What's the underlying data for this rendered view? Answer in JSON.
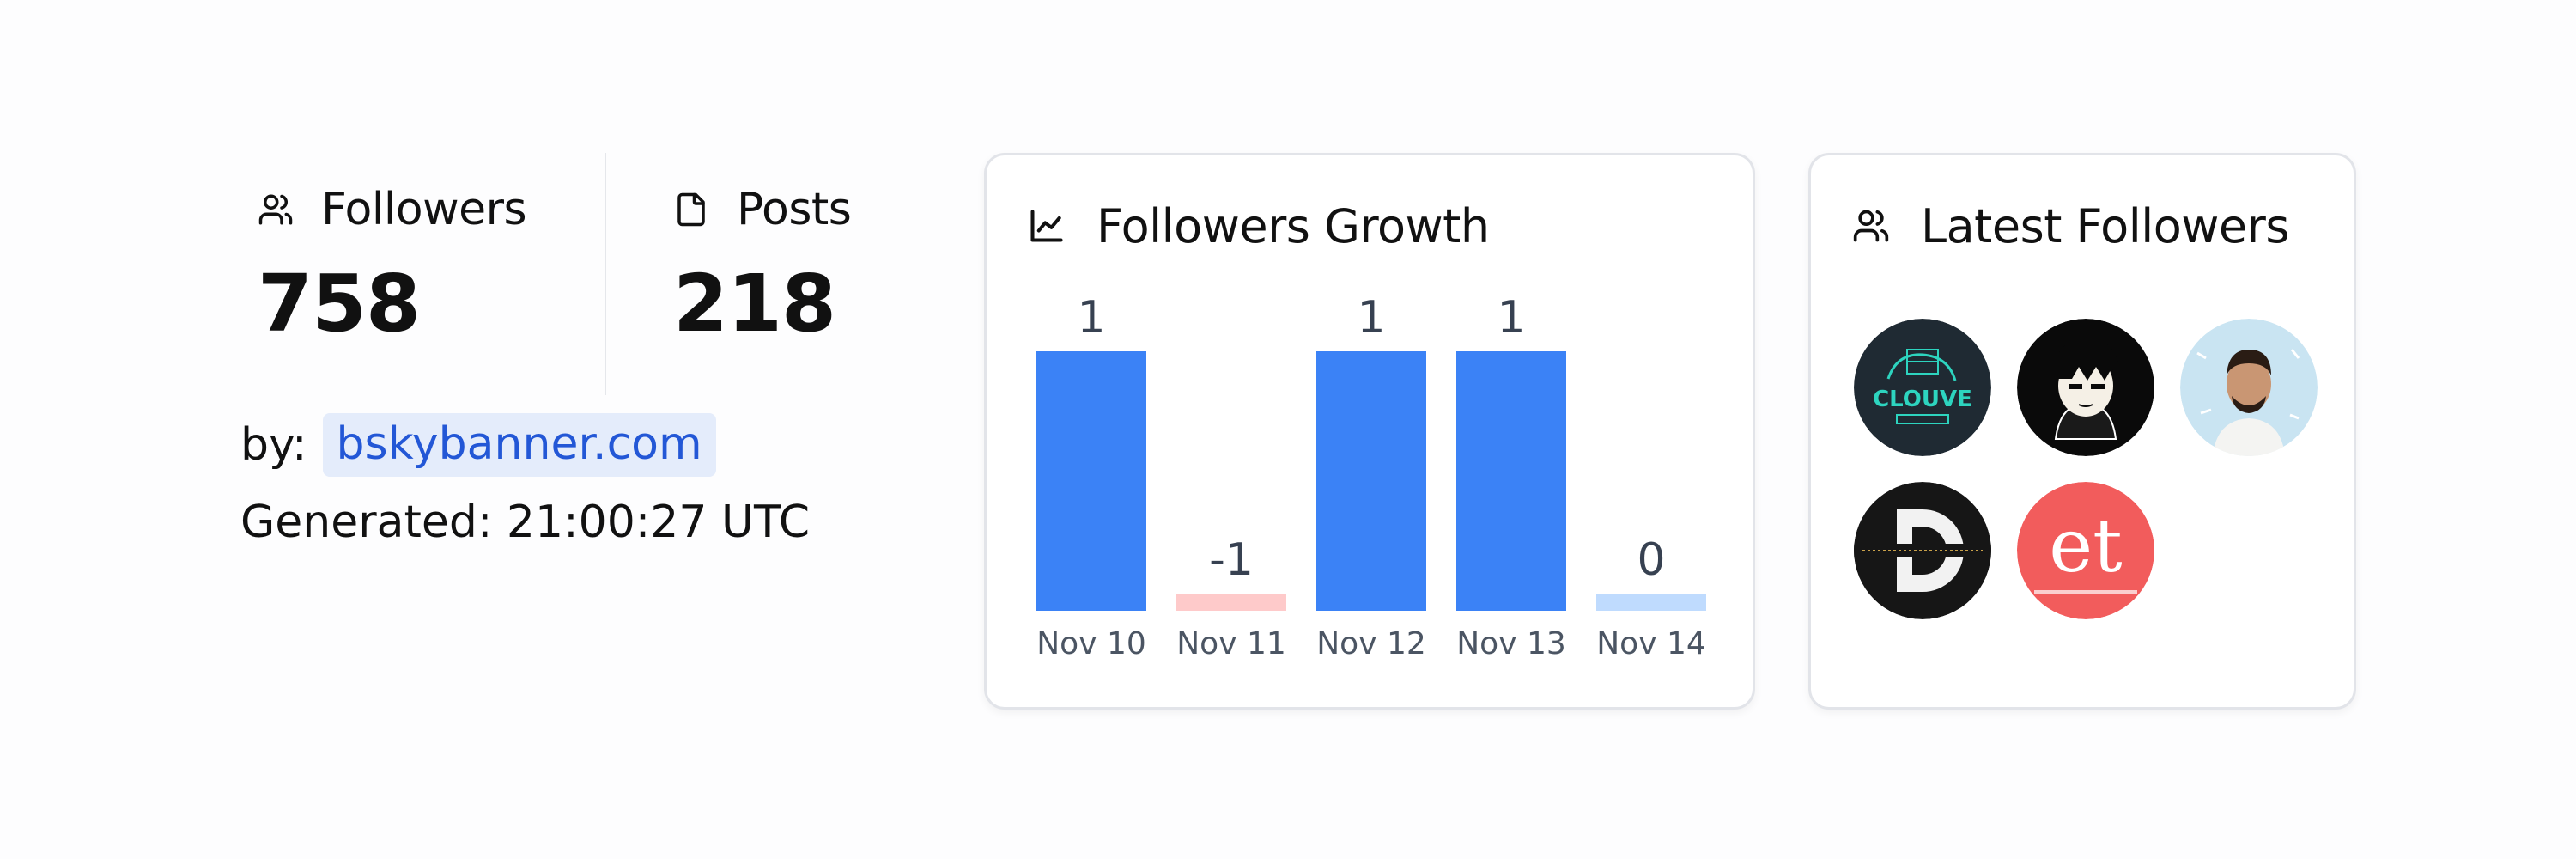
{
  "stats": {
    "followers": {
      "label": "Followers",
      "value": "758",
      "icon": "users-icon"
    },
    "posts": {
      "label": "Posts",
      "value": "218",
      "icon": "file-icon"
    }
  },
  "byline": {
    "label": "by:",
    "link": "bskybanner.com"
  },
  "generated": "Generated: 21:00:27 UTC",
  "growth_card": {
    "title": "Followers Growth",
    "icon": "line-chart-icon"
  },
  "latest_card": {
    "title": "Latest Followers",
    "icon": "users-icon",
    "avatars": [
      {
        "name": "avatar-clouve",
        "text": "CLOUVE"
      },
      {
        "name": "avatar-anime-character",
        "text": ""
      },
      {
        "name": "avatar-man-portrait",
        "text": ""
      },
      {
        "name": "avatar-director-d",
        "text": "D"
      },
      {
        "name": "avatar-et-launch",
        "text": "et"
      }
    ]
  },
  "colors": {
    "positive_bar": "#3b82f6",
    "negative_bar": "#fecaca",
    "zero_bar": "#bfdbfe",
    "link": "#2357d6",
    "link_bg": "#e4ecfb"
  },
  "chart_data": {
    "type": "bar",
    "categories": [
      "Nov 10",
      "Nov 11",
      "Nov 12",
      "Nov 13",
      "Nov 14"
    ],
    "values": [
      1,
      -1,
      1,
      1,
      0
    ],
    "value_labels": [
      "1",
      "-1",
      "1",
      "1",
      "0"
    ],
    "title": "Followers Growth",
    "xlabel": "",
    "ylabel": "",
    "ylim": [
      0,
      1
    ],
    "grid": false,
    "legend": "none"
  }
}
